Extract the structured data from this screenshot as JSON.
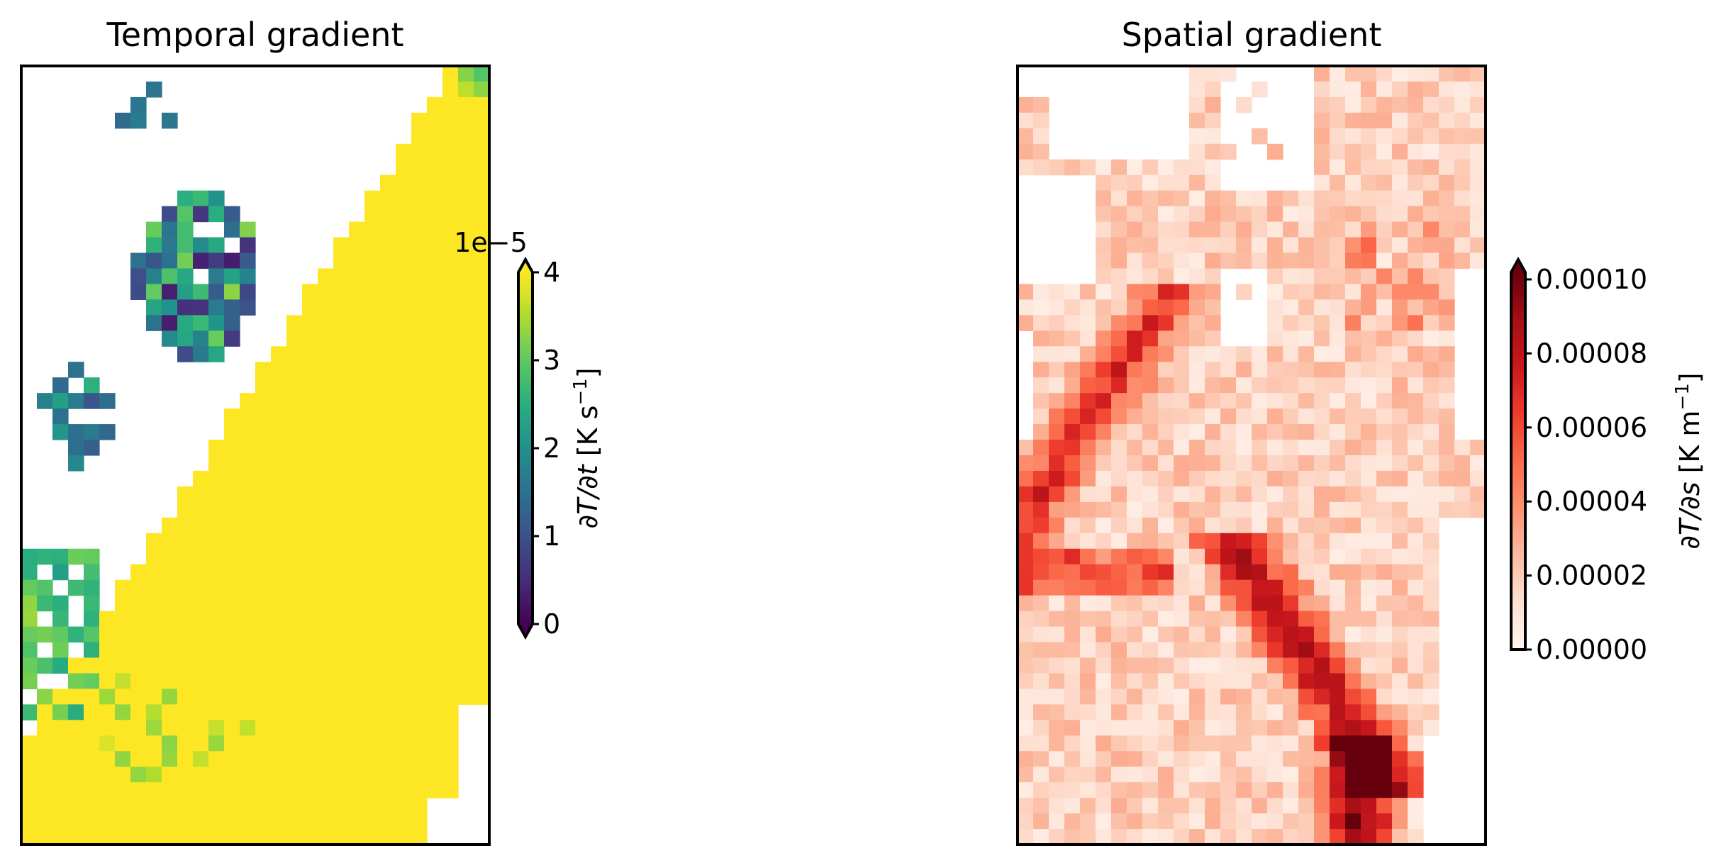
{
  "chart_data": [
    {
      "type": "heatmap",
      "title": "Temporal gradient",
      "colormap": "viridis",
      "colorbar": {
        "label": "∂T/∂t [K s⁻¹]",
        "label_parts": [
          "∂T/∂t",
          " [K s",
          "−1",
          "]"
        ],
        "offset_text": "1e−5",
        "vmin": 0,
        "vmax": 4,
        "ticks": [
          "0",
          "1",
          "2",
          "3",
          "4"
        ],
        "extend": "both"
      },
      "grid": {
        "cols": 30,
        "rows": 50
      },
      "missing_values_color": "#ffffff",
      "note_saturated_region": "large diagonal band at or above 4e-5 (yellow)"
    },
    {
      "type": "heatmap",
      "title": "Spatial gradient",
      "colormap": "Reds",
      "colorbar": {
        "label": "∂T/∂s [K m⁻¹]",
        "label_parts": [
          "∂T/∂s",
          " [K m",
          "−1",
          "]"
        ],
        "vmin": 0,
        "vmax": 0.0001,
        "ticks": [
          "0.00000",
          "0.00002",
          "0.00004",
          "0.00006",
          "0.00008",
          "0.00010"
        ],
        "extend": "max"
      },
      "grid": {
        "cols": 30,
        "rows": 50
      },
      "missing_values_color": "#ffffff"
    }
  ]
}
